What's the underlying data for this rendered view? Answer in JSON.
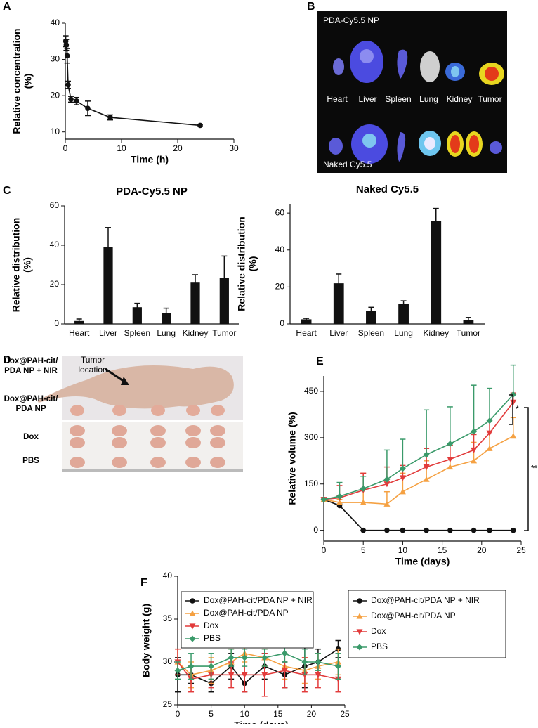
{
  "chart_data": [
    {
      "type": "line",
      "label": "A",
      "x": [
        0.08,
        0.17,
        0.33,
        0.5,
        1,
        2,
        4,
        8,
        24
      ],
      "values": [
        35,
        34,
        31,
        23,
        19,
        18.5,
        16.5,
        14,
        11.8
      ],
      "errors": [
        1.5,
        1.5,
        2,
        1,
        0.8,
        1,
        2,
        0.7,
        0.3
      ],
      "color": "#111111",
      "marker": "circle",
      "xlabel": "Time (h)",
      "ylabel": [
        "Relative concentration",
        "(%)"
      ],
      "xlim": [
        0,
        30
      ],
      "xticks": [
        0,
        10,
        20,
        30
      ],
      "ylim": [
        8,
        40
      ],
      "yticks": [
        10,
        20,
        30,
        40
      ]
    },
    {
      "type": "bar",
      "label": "C",
      "title": "PDA-Cy5.5 NP",
      "categories": [
        "Heart",
        "Liver",
        "Spleen",
        "Lung",
        "Kidney",
        "Tumor"
      ],
      "values": [
        1.5,
        39,
        8.5,
        5.5,
        21,
        23.5
      ],
      "errors": [
        1,
        10,
        2,
        2.5,
        4,
        11
      ],
      "color": "#111111",
      "ylabel": [
        "Relative distribution",
        "(%)"
      ],
      "ylim": [
        0,
        60
      ],
      "yticks": [
        0,
        20,
        40,
        60
      ]
    },
    {
      "type": "bar",
      "title": "Naked Cy5.5",
      "categories": [
        "Heart",
        "Liver",
        "Spleen",
        "Lung",
        "Kidney",
        "Tumor"
      ],
      "values": [
        2.5,
        22,
        7,
        11,
        55.5,
        2
      ],
      "errors": [
        0.5,
        5,
        2,
        1.5,
        7,
        1.5
      ],
      "color": "#111111",
      "ylabel": [
        "Relative distribution",
        "(%)"
      ],
      "ylim": [
        0,
        65
      ],
      "yticks": [
        0,
        20,
        40,
        60
      ]
    },
    {
      "type": "line",
      "label": "E",
      "x": [
        0,
        2,
        5,
        8,
        10,
        13,
        16,
        19,
        21,
        24
      ],
      "error_bars": "upper",
      "legend": "below",
      "series": [
        {
          "name": "Dox@PAH-cit/PDA NP + NIR",
          "color": "#111111",
          "marker": "circle",
          "values": [
            100,
            80,
            0,
            0,
            0,
            0,
            0,
            0,
            0,
            0
          ],
          "errors": [
            5,
            5,
            0,
            0,
            0,
            0,
            0,
            0,
            0,
            0
          ]
        },
        {
          "name": "Dox@PAH-cit/PDA NP",
          "color": "#f5a142",
          "marker": "triangle-up",
          "values": [
            100,
            90,
            90,
            85,
            125,
            165,
            205,
            225,
            265,
            305
          ],
          "errors": [
            0,
            10,
            95,
            40,
            60,
            60,
            70,
            60,
            55,
            60
          ]
        },
        {
          "name": "Dox",
          "color": "#e23b3b",
          "marker": "triangle-down",
          "values": [
            100,
            105,
            130,
            150,
            170,
            205,
            230,
            260,
            315,
            415
          ],
          "errors": [
            0,
            40,
            55,
            55,
            40,
            60,
            45,
            50,
            40,
            30
          ]
        },
        {
          "name": "PBS",
          "color": "#3a9a6a",
          "marker": "diamond",
          "values": [
            100,
            110,
            135,
            165,
            200,
            245,
            280,
            320,
            355,
            440
          ],
          "errors": [
            0,
            45,
            40,
            95,
            95,
            145,
            120,
            150,
            105,
            95
          ]
        }
      ],
      "annotations": [
        "*",
        "**"
      ],
      "xlabel": "Time (days)",
      "ylabel": [
        "Relative volume (%)"
      ],
      "xlim": [
        0,
        25
      ],
      "xticks": [
        0,
        5,
        10,
        15,
        20,
        25
      ],
      "ylim": [
        -35,
        500
      ],
      "yticks": [
        0,
        150,
        300,
        450
      ]
    },
    {
      "type": "line",
      "label": "F",
      "x": [
        0,
        2,
        5,
        8,
        10,
        13,
        16,
        19,
        21,
        24
      ],
      "error_bars": "both",
      "legend": "upper left",
      "series": [
        {
          "name": "Dox@PAH-cit/PDA NP + NIR",
          "color": "#111111",
          "marker": "circle",
          "values": [
            28.5,
            28.5,
            27.5,
            29.5,
            27.5,
            29.5,
            28.5,
            29.5,
            30,
            31.5
          ],
          "errors": [
            2,
            1,
            1,
            1.5,
            1,
            1.5,
            1.5,
            2.5,
            1.5,
            1
          ]
        },
        {
          "name": "Dox@PAH-cit/PDA NP",
          "color": "#f5a142",
          "marker": "triangle-up",
          "values": [
            30,
            28.5,
            29,
            30,
            31,
            30.5,
            29.5,
            29,
            29.5,
            30
          ],
          "errors": [
            1.5,
            1.5,
            1.5,
            1.5,
            1,
            1,
            1.5,
            1.5,
            1.5,
            1.5
          ]
        },
        {
          "name": "Dox",
          "color": "#e23b3b",
          "marker": "triangle-down",
          "values": [
            30,
            28,
            28.5,
            28.5,
            28.5,
            28.5,
            29,
            28.5,
            28.5,
            28
          ],
          "errors": [
            1.5,
            1.5,
            1.5,
            1.5,
            2,
            2.5,
            2,
            2,
            1.5,
            1.5
          ]
        },
        {
          "name": "PBS",
          "color": "#3a9a6a",
          "marker": "diamond",
          "values": [
            29,
            29.5,
            29.5,
            30.5,
            30.5,
            30.5,
            31,
            30,
            30,
            29.5
          ],
          "errors": [
            1,
            1.5,
            1.5,
            1,
            1,
            1,
            1,
            1.5,
            1,
            1.5
          ]
        }
      ],
      "xlabel": "Time (days)",
      "ylabel": [
        "Body weight (g)"
      ],
      "xlim": [
        0,
        25
      ],
      "xticks": [
        0,
        5,
        10,
        15,
        20,
        25
      ],
      "ylim": [
        25,
        40
      ],
      "yticks": [
        25,
        30,
        35,
        40
      ]
    }
  ],
  "image_b": {
    "label": "B",
    "top_caption": "PDA-Cy5.5 NP",
    "bottom_caption": "Naked Cy5.5",
    "organs": [
      "Heart",
      "Liver",
      "Spleen",
      "Lung",
      "Kidney",
      "Tumor"
    ]
  },
  "image_d": {
    "label": "D",
    "pointer": [
      "Tumor",
      "location"
    ],
    "rows": [
      [
        "Dox@PAH-cit/",
        "PDA NP + NIR"
      ],
      [
        "Dox@PAH-cit/",
        "PDA NP"
      ],
      [
        "Dox"
      ],
      [
        "PBS"
      ]
    ]
  }
}
